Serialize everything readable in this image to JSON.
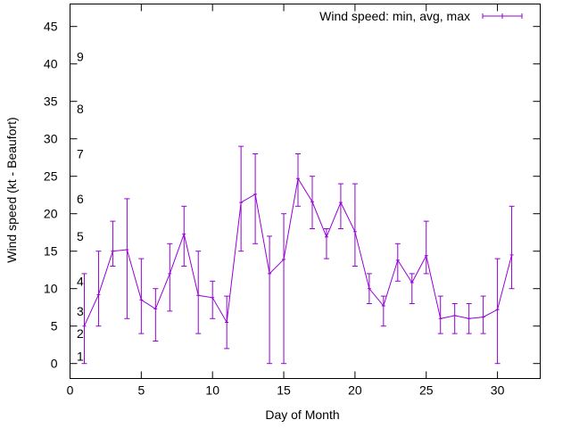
{
  "chart_data": {
    "type": "line",
    "title": "",
    "xlabel": "Day of Month",
    "ylabel": "Wind speed (kt - Beaufort)",
    "xlim": [
      0,
      33
    ],
    "ylim": [
      -2,
      48
    ],
    "xticks": [
      0,
      5,
      10,
      15,
      20,
      25,
      30
    ],
    "yticks": [
      0,
      5,
      10,
      15,
      20,
      25,
      30,
      35,
      40,
      45
    ],
    "beaufort_labels": [
      {
        "label": "1",
        "y": 1
      },
      {
        "label": "2",
        "y": 4
      },
      {
        "label": "3",
        "y": 7
      },
      {
        "label": "4",
        "y": 11
      },
      {
        "label": "5",
        "y": 17
      },
      {
        "label": "6",
        "y": 22
      },
      {
        "label": "7",
        "y": 28
      },
      {
        "label": "8",
        "y": 34
      },
      {
        "label": "9",
        "y": 41
      }
    ],
    "legend": {
      "label": "Wind speed: min, avg, max",
      "position": "top-right"
    },
    "series": [
      {
        "name": "Wind speed: min, avg, max",
        "color": "#9400d3",
        "x": [
          1,
          2,
          3,
          4,
          5,
          6,
          7,
          8,
          9,
          10,
          11,
          12,
          13,
          14,
          15,
          16,
          17,
          18,
          19,
          20,
          21,
          22,
          23,
          24,
          25,
          26,
          27,
          28,
          29,
          30,
          31
        ],
        "avg": [
          5,
          9.2,
          15,
          15.2,
          8.5,
          7.3,
          12,
          17.3,
          9.1,
          8.8,
          5.5,
          21.5,
          22.6,
          12,
          13.9,
          24.7,
          21.6,
          16.9,
          21.5,
          17.6,
          10,
          7.7,
          13.8,
          10.8,
          14.4,
          6,
          6.4,
          6,
          6.2,
          7.2,
          14.5
        ],
        "min": [
          0,
          5,
          13,
          6,
          4,
          3,
          7,
          13,
          4,
          6,
          2,
          15,
          16,
          0,
          0,
          21,
          18,
          14,
          18,
          13,
          8,
          5,
          11,
          8,
          12,
          4,
          4,
          4,
          4,
          0,
          10
        ],
        "max": [
          12,
          15,
          19,
          22,
          14,
          10,
          16,
          21,
          15,
          11,
          9,
          29,
          28,
          17,
          20,
          28,
          25,
          18,
          24,
          24,
          12,
          9,
          16,
          12,
          19,
          9,
          8,
          8,
          9,
          14,
          21
        ]
      }
    ]
  }
}
